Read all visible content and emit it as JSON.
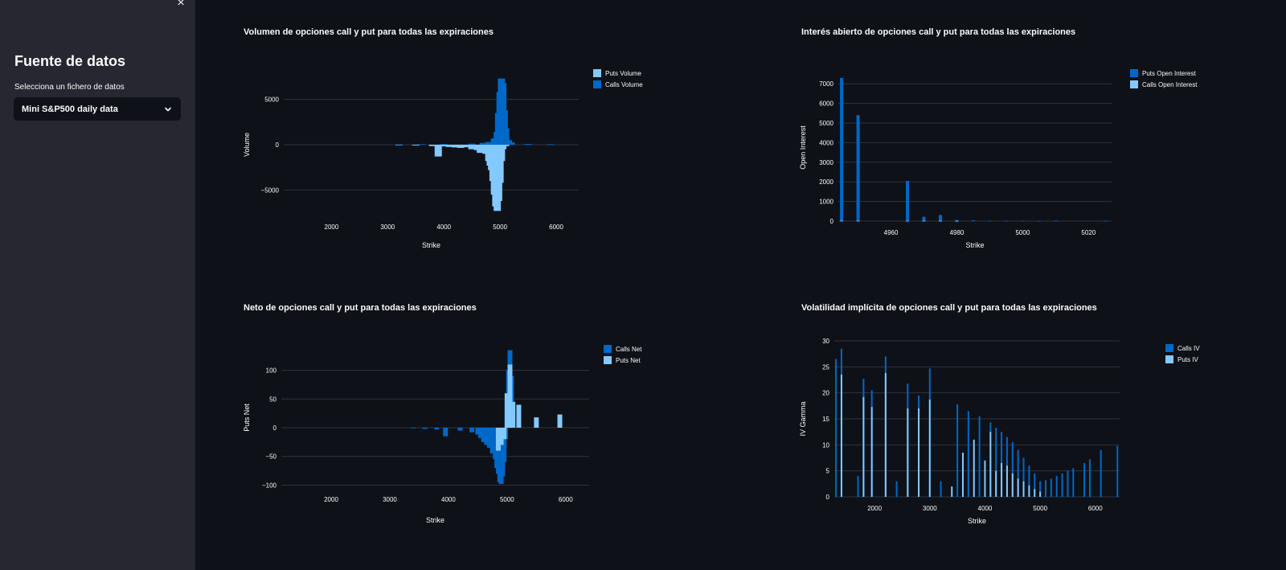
{
  "sidebar": {
    "close_glyph": "×",
    "title": "Fuente de datos",
    "select_label": "Selecciona un fichero de datos",
    "select_value": "Mini S&P500 daily data"
  },
  "colors": {
    "calls": "#0068c9",
    "puts": "#83c9ff",
    "grid": "#31333f",
    "background": "#0e1117",
    "sidebar": "#262730"
  },
  "charts": {
    "volume": {
      "title": "Volumen de opciones call y put para todas las expiraciones"
    },
    "oi": {
      "title": "Interés abierto de opciones call y put para todas las expiraciones"
    },
    "net": {
      "title": "Neto de opciones call y put para todas las expiraciones"
    },
    "iv": {
      "title": "Volatilidad implícita de opciones call y put para todas las expiraciones"
    }
  },
  "chart_data": [
    {
      "id": "volume",
      "type": "bar",
      "barmode": "relative",
      "xlabel": "Strike",
      "ylabel": "Volume",
      "xlim": [
        1150,
        6400
      ],
      "ylim": [
        -7800,
        7800
      ],
      "xticks": [
        2000,
        3000,
        4000,
        5000,
        6000
      ],
      "yticks": [
        -5000,
        0,
        5000
      ],
      "ytick_labels": [
        "−5000",
        "0",
        "5000"
      ],
      "legend_position": "top-right",
      "bar_width": 9,
      "series": [
        {
          "name": "Puts Volume",
          "color": "#83c9ff",
          "x": [
            3200,
            3500,
            3800,
            3900,
            4000,
            4100,
            4200,
            4300,
            4400,
            4500,
            4600,
            4650,
            4700,
            4750,
            4800,
            4825,
            4850,
            4875,
            4900,
            4925,
            4950,
            4975,
            5000,
            5025,
            5050,
            5100
          ],
          "y": [
            -60,
            -80,
            -150,
            -1300,
            -180,
            -250,
            -300,
            -350,
            -280,
            -500,
            -600,
            -900,
            -800,
            -1000,
            -1800,
            -2300,
            -2800,
            -4000,
            -5500,
            -6800,
            -7300,
            -6200,
            -4200,
            -1800,
            -500,
            -150
          ]
        },
        {
          "name": "Calls Volume",
          "color": "#0068c9",
          "x": [
            3200,
            3600,
            4000,
            4500,
            4700,
            4800,
            4900,
            4950,
            4975,
            5000,
            5025,
            5050,
            5075,
            5100,
            5150,
            5200,
            5500,
            5900
          ],
          "y": [
            40,
            60,
            80,
            120,
            200,
            300,
            700,
            1400,
            3500,
            5800,
            7300,
            6800,
            3800,
            1800,
            500,
            250,
            80,
            50
          ]
        }
      ]
    },
    {
      "id": "oi",
      "type": "bar",
      "barmode": "relative",
      "xlabel": "Strike",
      "ylabel": "Open Interest",
      "xlim": [
        4944,
        5027
      ],
      "ylim": [
        0,
        7500
      ],
      "xticks": [
        4960,
        4980,
        5000,
        5020
      ],
      "yticks": [
        0,
        1000,
        2000,
        3000,
        4000,
        5000,
        6000,
        7000
      ],
      "legend_position": "top-right",
      "bar_width": 4,
      "series": [
        {
          "name": "Puts Open Interest",
          "color": "#0068c9",
          "x": [
            4945,
            4950,
            4965,
            4970,
            4975,
            4980,
            4985,
            4990,
            4995,
            5000,
            5005,
            5010,
            5025
          ],
          "y": [
            7300,
            5400,
            2050,
            220,
            310,
            60,
            40,
            25,
            20,
            20,
            15,
            30,
            20
          ]
        },
        {
          "name": "Calls Open Interest",
          "color": "#83c9ff",
          "x": [
            4945,
            4950,
            4965,
            4970,
            4975,
            4980
          ],
          "y": [
            20,
            20,
            15,
            15,
            15,
            10
          ]
        }
      ]
    },
    {
      "id": "net",
      "type": "bar",
      "barmode": "overlay",
      "xlabel": "Strike",
      "ylabel": "Puts Net",
      "xlim": [
        1150,
        6400
      ],
      "ylim": [
        -105,
        140
      ],
      "xticks": [
        2000,
        3000,
        4000,
        5000,
        6000
      ],
      "yticks": [
        -100,
        -50,
        0,
        50,
        100
      ],
      "ytick_labels": [
        "−100",
        "−50",
        "0",
        "50",
        "100"
      ],
      "legend_position": "top-right",
      "bar_width": 6,
      "series": [
        {
          "name": "Calls Net",
          "color": "#0068c9",
          "x": [
            3400,
            3600,
            3800,
            3950,
            4200,
            4400,
            4500,
            4550,
            4600,
            4650,
            4700,
            4750,
            4800,
            4825,
            4850,
            4875,
            4900,
            4925,
            4950,
            4975,
            5000,
            5025,
            5050,
            5075,
            5100
          ],
          "y": [
            -1,
            -2,
            -3,
            -15,
            -5,
            -8,
            -12,
            -18,
            -25,
            -30,
            -35,
            -45,
            -55,
            -70,
            -80,
            -95,
            -98,
            -85,
            -60,
            -20,
            50,
            100,
            135,
            90,
            30
          ]
        },
        {
          "name": "Puts Net",
          "color": "#83c9ff",
          "x": [
            4850,
            4900,
            4950,
            5000,
            5050,
            5100,
            5200,
            5500,
            5900
          ],
          "y": [
            -40,
            -30,
            -20,
            60,
            110,
            45,
            40,
            18,
            23
          ]
        }
      ]
    },
    {
      "id": "iv",
      "type": "bar",
      "barmode": "overlay",
      "xlabel": "Strike",
      "ylabel": "IV Gamma",
      "xlim": [
        1270,
        6440
      ],
      "ylim": [
        0,
        30
      ],
      "xticks": [
        2000,
        3000,
        4000,
        5000,
        6000
      ],
      "yticks": [
        0,
        5,
        10,
        15,
        20,
        25,
        30
      ],
      "legend_position": "top-right",
      "bar_width": 2,
      "series": [
        {
          "name": "Calls IV",
          "color": "#0068c9",
          "x": [
            1300,
            1400,
            1700,
            1800,
            1950,
            2200,
            2400,
            2600,
            2800,
            3000,
            3200,
            3500,
            3700,
            3900,
            4100,
            4200,
            4300,
            4400,
            4500,
            4600,
            4700,
            4800,
            4900,
            5000,
            5100,
            5200,
            5300,
            5400,
            5500,
            5600,
            5800,
            5900,
            6100,
            6400
          ],
          "y": [
            26.5,
            28.5,
            4,
            22.7,
            20.5,
            27,
            3,
            21.8,
            19.5,
            24.7,
            3,
            17.8,
            16.5,
            15.5,
            14.3,
            13.3,
            12.5,
            11.5,
            10.5,
            9,
            7.5,
            6,
            4.5,
            3,
            3.2,
            3.5,
            4,
            4.5,
            5,
            5.5,
            6.5,
            7.2,
            9,
            9.8
          ]
        },
        {
          "name": "Puts IV",
          "color": "#83c9ff",
          "x": [
            1400,
            1800,
            1950,
            2200,
            2600,
            2800,
            3000,
            3400,
            3600,
            3800,
            4000,
            4100,
            4200,
            4300,
            4400,
            4500,
            4600,
            4700,
            4800,
            4900,
            5000
          ],
          "y": [
            23.5,
            19.2,
            17.3,
            23.8,
            17,
            17,
            18.7,
            2,
            8.5,
            11,
            7,
            12.5,
            5,
            6.5,
            6,
            4.5,
            3.5,
            3,
            2.2,
            1.5,
            1
          ]
        }
      ]
    }
  ]
}
